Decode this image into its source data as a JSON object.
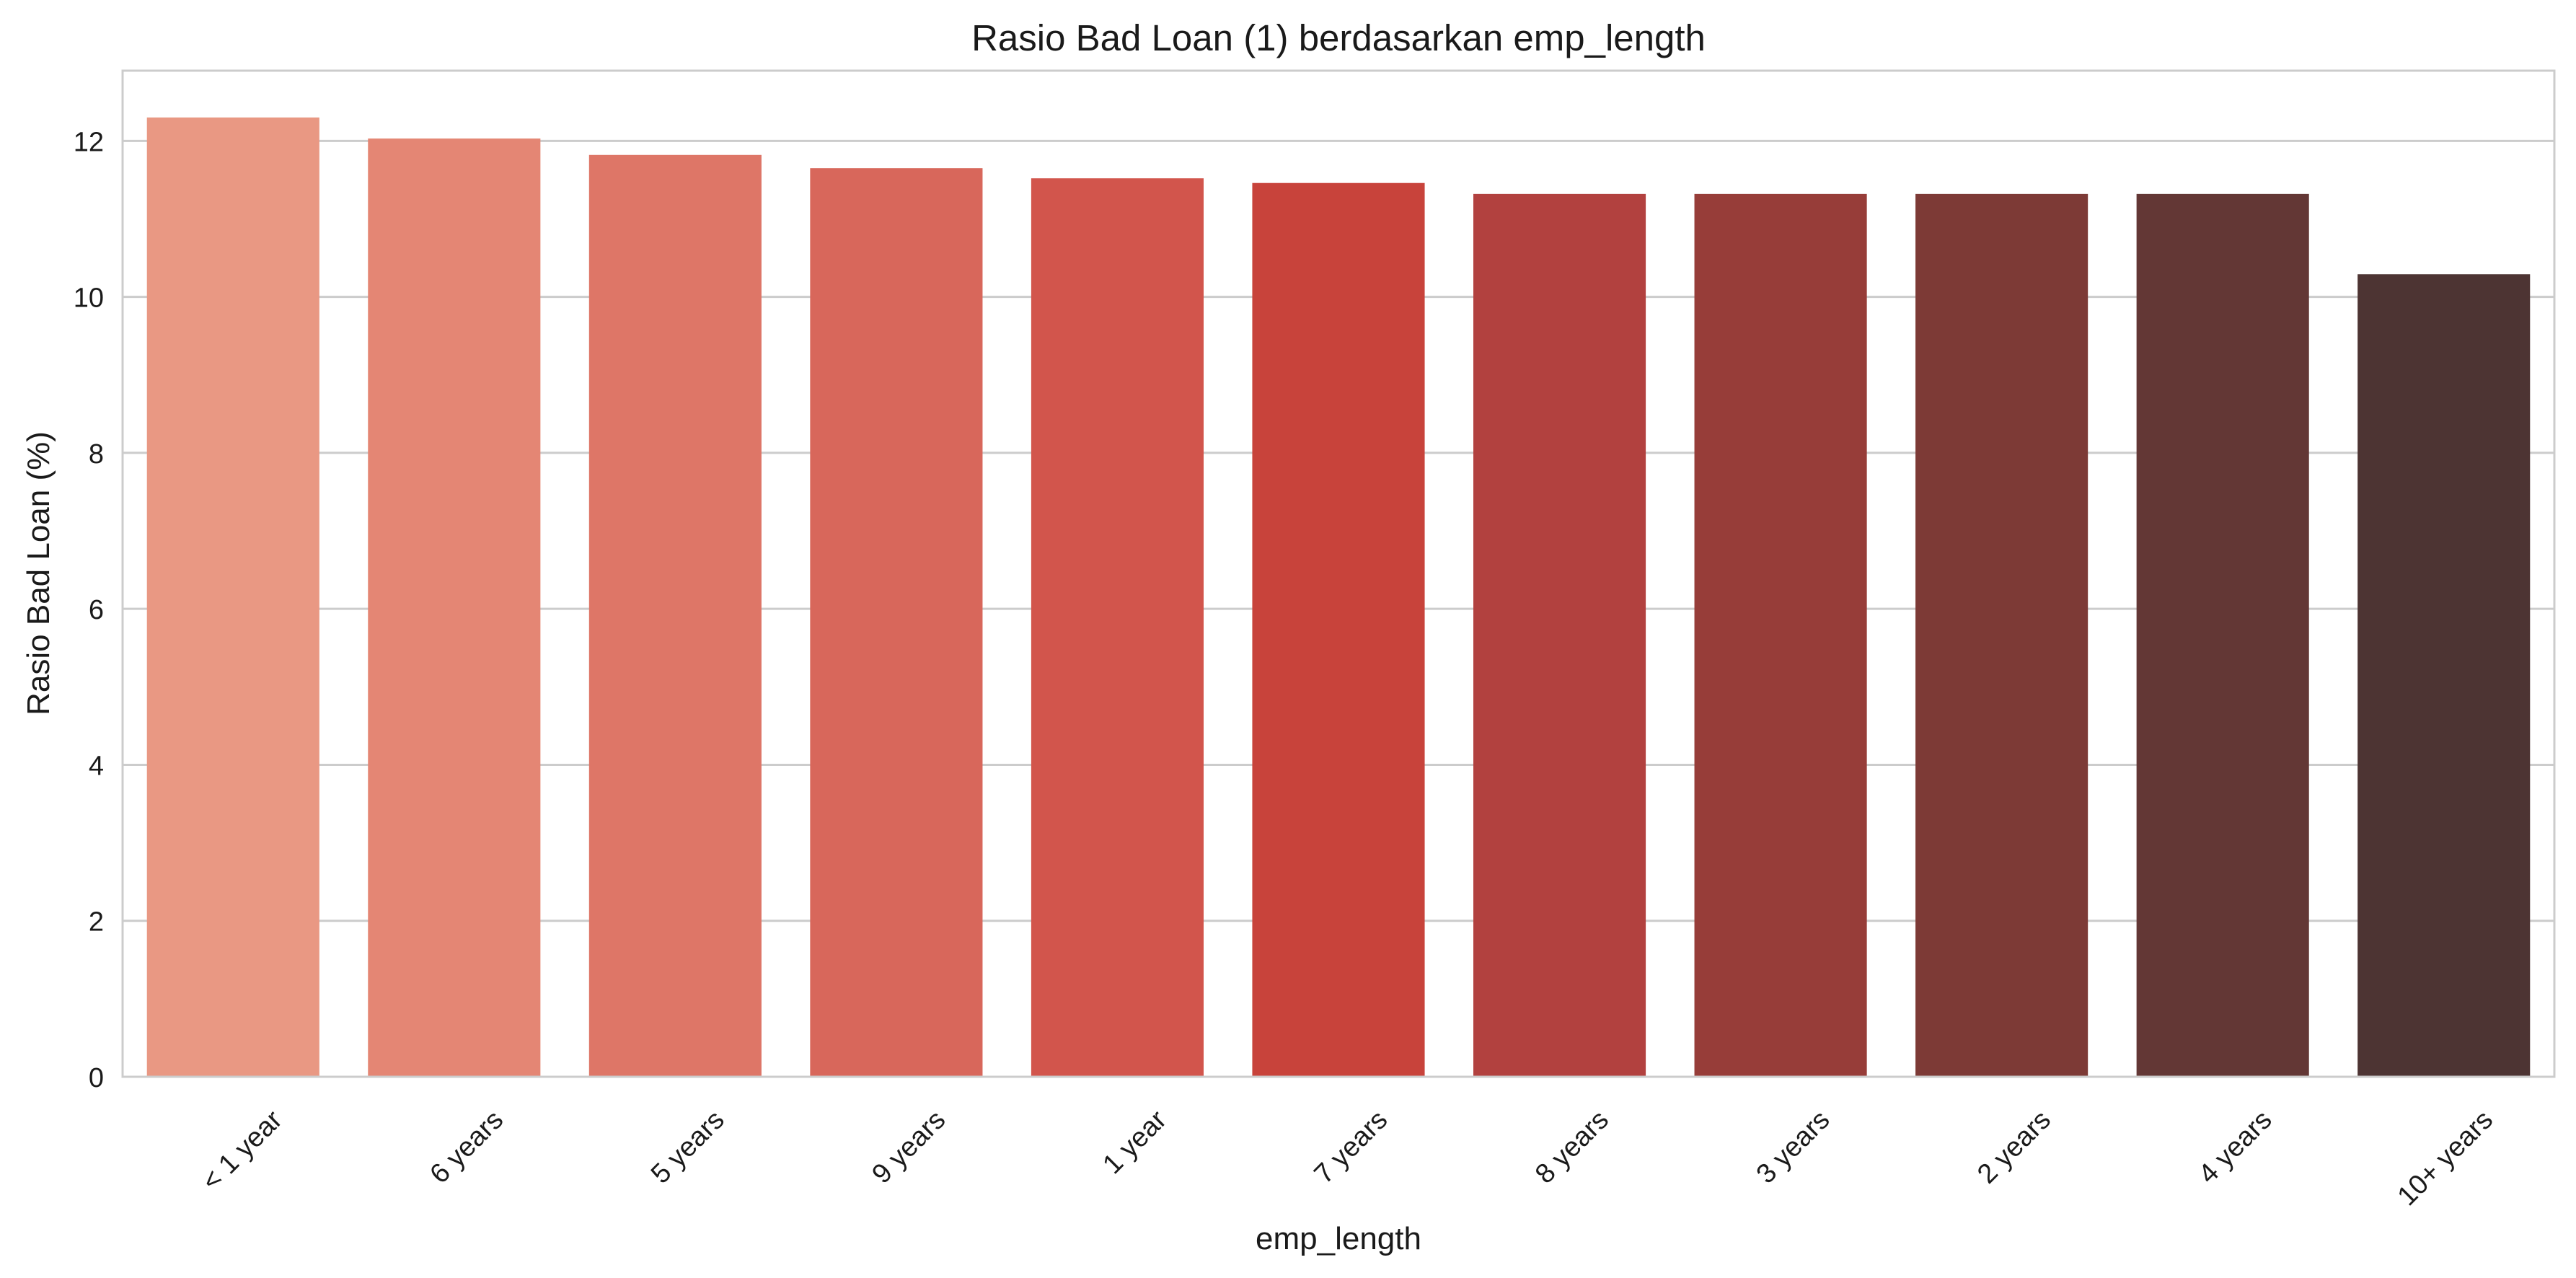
{
  "chart_data": {
    "type": "bar",
    "title": "Rasio Bad Loan (1) berdasarkan emp_length",
    "xlabel": "emp_length",
    "ylabel": "Rasio Bad Loan (%)",
    "categories": [
      "< 1 year",
      "6 years",
      "5 years",
      "9 years",
      "1 year",
      "7 years",
      "8 years",
      "3 years",
      "2 years",
      "4 years",
      "10+ years"
    ],
    "values": [
      12.3,
      12.03,
      11.82,
      11.65,
      11.52,
      11.46,
      11.32,
      11.32,
      11.32,
      11.32,
      10.29
    ],
    "yticks": [
      0,
      2,
      4,
      6,
      8,
      10,
      12
    ],
    "ylim": [
      0,
      12.9
    ],
    "grid": "y-only",
    "colors": [
      "#e99883",
      "#e48674",
      "#de7667",
      "#d8675b",
      "#d2554c",
      "#c8433b",
      "#b2413f",
      "#973d39",
      "#7d3a36",
      "#633735",
      "#4d3433"
    ]
  }
}
